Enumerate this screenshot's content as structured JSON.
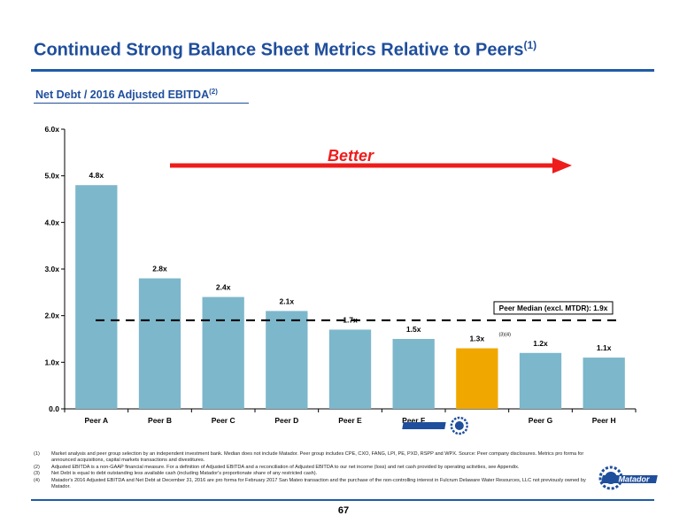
{
  "title": "Continued Strong Balance Sheet Metrics Relative to Peers",
  "title_sup": "(1)",
  "subtitle": "Net Debt / 2016 Adjusted EBITDA",
  "subtitle_sup": "(2)",
  "page_number": "67",
  "logo_text": "Matador",
  "footnotes": [
    {
      "num": "(1)",
      "text": "Market analysis and peer group selection by an independent investment bank. Median does not include Matador. Peer group includes CPE, CXO, FANG, LPI, PE, PXD, RSPP and WPX. Source: Peer company disclosures. Metrics pro forma for announced acquisitions, capital markets transactions and divestitures."
    },
    {
      "num": "(2)",
      "text": "Adjusted EBITDA is a non-GAAP financial measure. For a definition of Adjusted EBITDA and a reconciliation of Adjusted EBITDA to our net income (loss) and net cash provided by operating activities, see Appendix."
    },
    {
      "num": "(3)",
      "text": "Net Debt is equal to debt outstanding less available cash (including Matador's proportionate share of any restricted cash)."
    },
    {
      "num": "(4)",
      "text": "Matador's 2016 Adjusted EBITDA and Net Debt at December 31, 2016 are pro forma for February 2017 San Mateo transaction and the purchase of the non-controlling interest in Fulcrum Delaware Water Resources, LLC not previously owned by Matador."
    }
  ],
  "colors": {
    "accent": "#1f4e9c",
    "peer_bar": "#7db7cb",
    "matador_bar": "#f0a800",
    "arrow": "#ee1c1c"
  },
  "chart_data": {
    "type": "bar",
    "categories": [
      "Peer A",
      "Peer B",
      "Peer C",
      "Peer D",
      "Peer E",
      "Peer F",
      "",
      "Peer G",
      "Peer H"
    ],
    "values": [
      4.8,
      2.8,
      2.4,
      2.1,
      1.7,
      1.5,
      1.3,
      1.2,
      1.1
    ],
    "value_labels": [
      "4.8x",
      "2.8x",
      "2.4x",
      "2.1x",
      "1.7x",
      "1.5x",
      "1.3x",
      "1.2x",
      "1.1x"
    ],
    "highlight_index": 6,
    "highlight_note": "(3)(4)",
    "ylim": [
      0,
      6
    ],
    "yticks": [
      0,
      1,
      2,
      3,
      4,
      5,
      6
    ],
    "ytick_labels": [
      "0.0",
      "1.0x",
      "2.0x",
      "3.0x",
      "4.0x",
      "5.0x",
      "6.0x"
    ],
    "median": {
      "value": 1.9,
      "label": "Peer Median (excl. MTDR): 1.9x"
    },
    "annotation": "Better",
    "xlabel": "",
    "ylabel": "",
    "grid": false
  }
}
